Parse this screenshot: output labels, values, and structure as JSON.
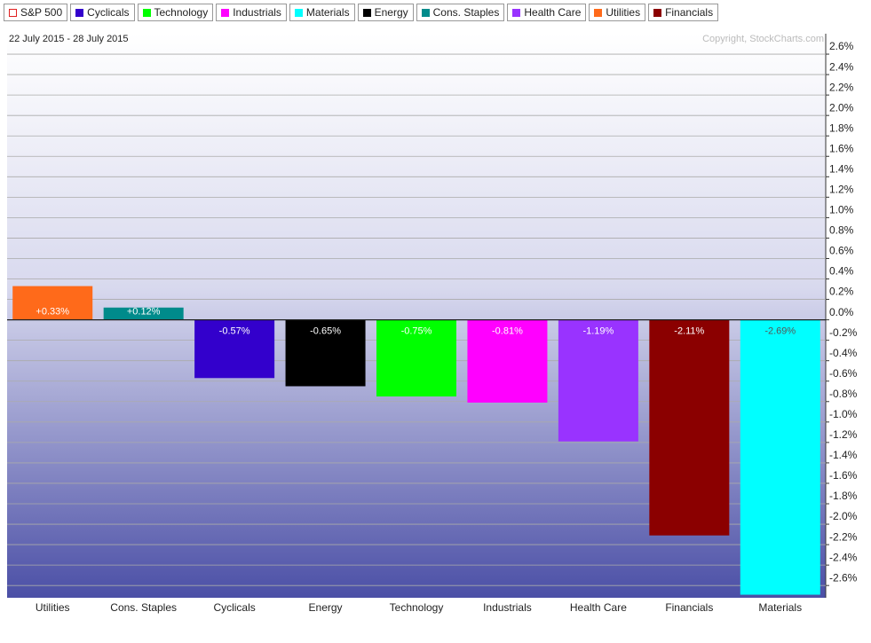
{
  "chart_data": {
    "type": "bar",
    "subtitle": "22 July 2015 - 28 July 2015",
    "annotation": "Copyright, StockCharts.com",
    "legend": [
      {
        "name": "S&P 500",
        "color": "#e02020",
        "outline": true
      },
      {
        "name": "Cyclicals",
        "color": "#3300cc"
      },
      {
        "name": "Technology",
        "color": "#00ff00"
      },
      {
        "name": "Industrials",
        "color": "#ff00ff"
      },
      {
        "name": "Materials",
        "color": "#00ffff"
      },
      {
        "name": "Energy",
        "color": "#000000"
      },
      {
        "name": "Cons. Staples",
        "color": "#008b8b"
      },
      {
        "name": "Health Care",
        "color": "#9933ff"
      },
      {
        "name": "Utilities",
        "color": "#ff6a1a"
      },
      {
        "name": "Financials",
        "color": "#8b0000"
      }
    ],
    "categories": [
      "Utilities",
      "Cons. Staples",
      "Cyclicals",
      "Energy",
      "Technology",
      "Industrials",
      "Health Care",
      "Financials",
      "Materials"
    ],
    "values": [
      0.33,
      0.12,
      -0.57,
      -0.65,
      -0.75,
      -0.81,
      -1.19,
      -2.11,
      -2.69
    ],
    "value_labels": [
      "+0.33%",
      "+0.12%",
      "-0.57%",
      "-0.65%",
      "-0.75%",
      "-0.81%",
      "-1.19%",
      "-2.11%",
      "-2.69%"
    ],
    "ylim": [
      -2.72,
      2.8
    ],
    "yticks": [
      {
        "value": 2.6,
        "label": "2.6%"
      },
      {
        "value": 2.4,
        "label": "2.4%"
      },
      {
        "value": 2.2,
        "label": "2.2%"
      },
      {
        "value": 2.0,
        "label": "2.0%"
      },
      {
        "value": 1.8,
        "label": "1.8%"
      },
      {
        "value": 1.6,
        "label": "1.6%"
      },
      {
        "value": 1.4,
        "label": "1.4%"
      },
      {
        "value": 1.2,
        "label": "1.2%"
      },
      {
        "value": 1.0,
        "label": "1.0%"
      },
      {
        "value": 0.8,
        "label": "0.8%"
      },
      {
        "value": 0.6,
        "label": "0.6%"
      },
      {
        "value": 0.4,
        "label": "0.4%"
      },
      {
        "value": 0.2,
        "label": "0.2%"
      },
      {
        "value": 0,
        "label": "0.0%"
      },
      {
        "value": -0.2,
        "label": "-0.2%"
      },
      {
        "value": -0.4,
        "label": "-0.4%"
      },
      {
        "value": -0.6,
        "label": "-0.6%"
      },
      {
        "value": -0.8,
        "label": "-0.8%"
      },
      {
        "value": -1.0,
        "label": "-1.0%"
      },
      {
        "value": -1.2,
        "label": "-1.2%"
      },
      {
        "value": -1.4,
        "label": "-1.4%"
      },
      {
        "value": -1.6,
        "label": "-1.6%"
      },
      {
        "value": -1.8,
        "label": "-1.8%"
      },
      {
        "value": -2.0,
        "label": "-2.0%"
      },
      {
        "value": -2.2,
        "label": "-2.2%"
      },
      {
        "value": -2.4,
        "label": "-2.4%"
      },
      {
        "value": -2.6,
        "label": "-2.6%"
      }
    ],
    "grid": true
  }
}
